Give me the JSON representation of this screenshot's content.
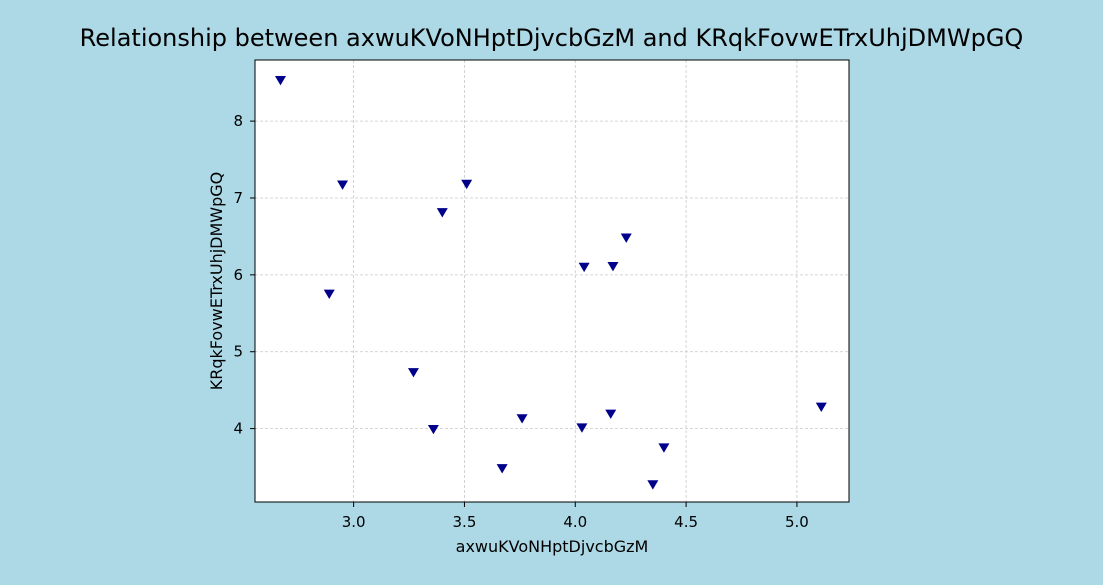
{
  "chart_data": {
    "type": "scatter",
    "title": "Relationship between axwuKVoNHptDjvcbGzM and KRqkFovwETrxUhjDMWpGQ",
    "xlabel": "axwuKVoNHptDjvcbGzM",
    "ylabel": "KRqkFovwETrxUhjDMWpGQ",
    "xlim": [
      2.555,
      5.235
    ],
    "ylim": [
      3.045,
      8.795
    ],
    "xticks": [
      3.0,
      3.5,
      4.0,
      4.5,
      5.0
    ],
    "xtick_labels": [
      "3.0",
      "3.5",
      "4.0",
      "4.5",
      "5.0"
    ],
    "yticks": [
      4,
      5,
      6,
      7,
      8
    ],
    "ytick_labels": [
      "4",
      "5",
      "6",
      "7",
      "8"
    ],
    "grid": true,
    "marker": "triangle-down",
    "colors": {
      "background": "#add8e6",
      "plot_area": "#ffffff",
      "marker": "#00008b",
      "grid": "#c8c8c8"
    },
    "points": [
      {
        "x": 2.67,
        "y": 8.53
      },
      {
        "x": 2.95,
        "y": 7.17
      },
      {
        "x": 3.51,
        "y": 7.18
      },
      {
        "x": 3.4,
        "y": 6.81
      },
      {
        "x": 2.89,
        "y": 5.75
      },
      {
        "x": 4.23,
        "y": 6.48
      },
      {
        "x": 4.04,
        "y": 6.1
      },
      {
        "x": 4.17,
        "y": 6.11
      },
      {
        "x": 3.27,
        "y": 4.73
      },
      {
        "x": 3.36,
        "y": 3.99
      },
      {
        "x": 3.76,
        "y": 4.13
      },
      {
        "x": 4.03,
        "y": 4.01
      },
      {
        "x": 4.16,
        "y": 4.19
      },
      {
        "x": 3.67,
        "y": 3.48
      },
      {
        "x": 4.4,
        "y": 3.75
      },
      {
        "x": 4.35,
        "y": 3.27
      },
      {
        "x": 5.11,
        "y": 4.28
      }
    ]
  }
}
